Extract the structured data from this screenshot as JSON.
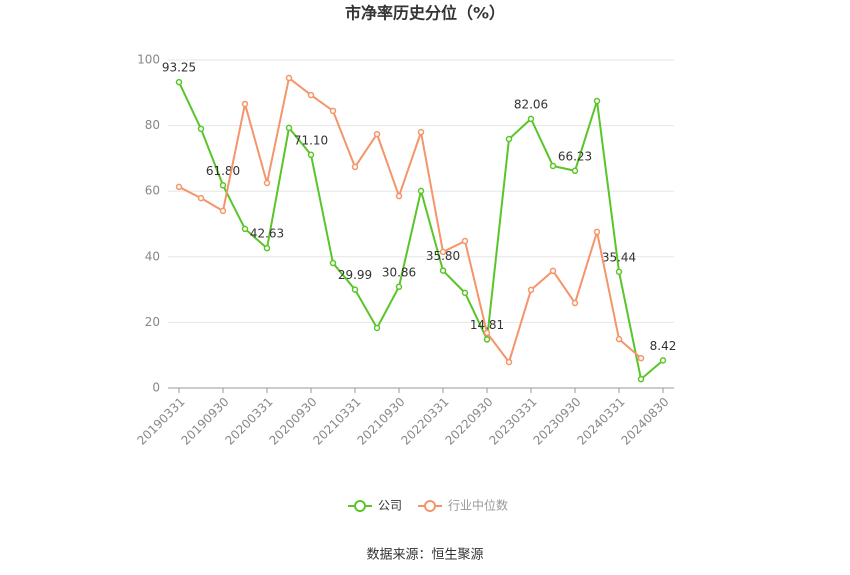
{
  "chart_data": {
    "type": "line",
    "title": "市净率历史分位（%）",
    "source": "数据来源：恒生聚源",
    "categories": [
      "20190331",
      null,
      "20190930",
      null,
      "20200331",
      null,
      "20200930",
      null,
      "20210331",
      null,
      "20210930",
      null,
      "20220331",
      null,
      "20220930",
      null,
      "20230331",
      null,
      "20230930",
      null,
      "20240331",
      null,
      "20240830"
    ],
    "series": [
      {
        "name": "公司",
        "color": "#5ac52a",
        "values": [
          93.25,
          79.0,
          61.8,
          48.5,
          42.63,
          79.3,
          71.1,
          38.1,
          29.99,
          18.3,
          30.86,
          60.1,
          35.8,
          29.0,
          14.81,
          75.9,
          82.06,
          67.7,
          66.23,
          87.5,
          35.44,
          2.7,
          8.42
        ],
        "value_labels": [
          "93.25",
          null,
          "61.80",
          null,
          "42.63",
          null,
          "71.10",
          null,
          "29.99",
          null,
          "30.86",
          null,
          "35.80",
          null,
          "14.81",
          null,
          "82.06",
          null,
          "66.23",
          null,
          "35.44",
          null,
          "8.42"
        ]
      },
      {
        "name": "行业中位数",
        "color": "#f4956a",
        "values": [
          61.3,
          57.9,
          54.0,
          86.6,
          62.5,
          94.5,
          89.3,
          84.5,
          67.4,
          77.4,
          58.5,
          78.0,
          41.5,
          44.8,
          16.8,
          7.9,
          29.9,
          35.7,
          25.9,
          47.6,
          14.9,
          9.1,
          null
        ]
      }
    ],
    "ylim": [
      0,
      100
    ],
    "yticks": [
      0,
      20,
      40,
      60,
      80,
      100
    ],
    "grid": true,
    "legend": "bottom"
  }
}
